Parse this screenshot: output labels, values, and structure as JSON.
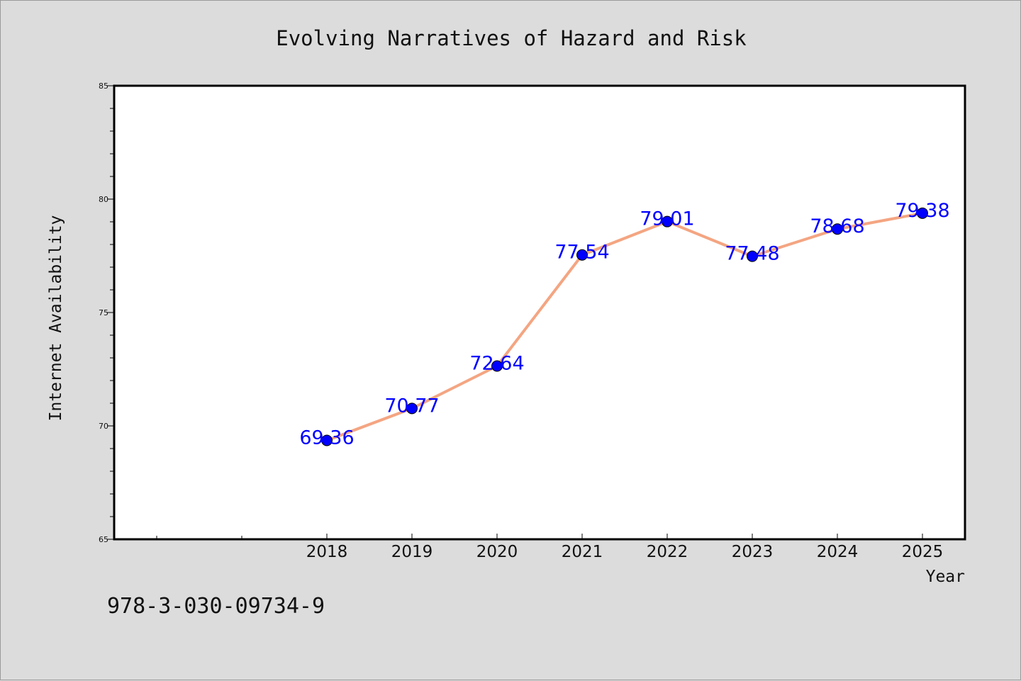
{
  "chart_data": {
    "type": "line",
    "title": "Evolving Narratives of Hazard and Risk",
    "xlabel": "Year",
    "ylabel": "Internet Availability",
    "x": [
      "2018",
      "2019",
      "2020",
      "2021",
      "2022",
      "2023",
      "2024",
      "2025"
    ],
    "series": [
      {
        "values": [
          69.36,
          70.77,
          72.64,
          77.54,
          79.01,
          77.48,
          78.68,
          79.38
        ]
      }
    ],
    "data_labels": [
      "69.36",
      "70.77",
      "72.64",
      "77.54",
      "79.01",
      "77.48",
      "78.68",
      "79.38"
    ],
    "ylim": [
      65,
      85
    ],
    "y_ticks": [
      "65",
      "70",
      "75",
      "80",
      "85"
    ],
    "grid": false,
    "colors": {
      "line": "#f4a582",
      "marker": "#0000ff",
      "label": "#0000ff",
      "background": "#dcdcdc",
      "plot_background": "#ffffff"
    }
  },
  "footer_text": "978-3-030-09734-9"
}
